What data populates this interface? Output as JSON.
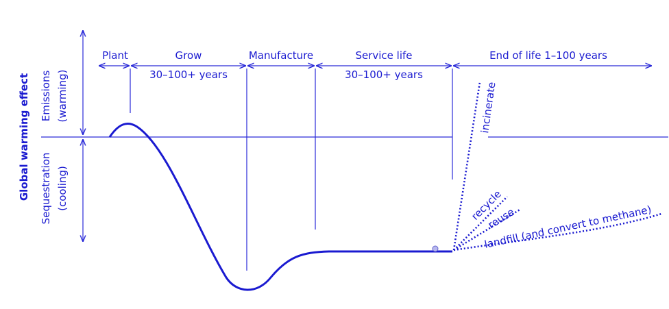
{
  "axis_label": "Global warming effect",
  "y_sections": [
    {
      "label": "Emissions",
      "sublabel": "(warming)"
    },
    {
      "label": "Sequestration",
      "sublabel": "(cooling)"
    }
  ],
  "phases": [
    {
      "label": "Plant"
    },
    {
      "label": "Grow",
      "duration": "30–100+ years"
    },
    {
      "label": "Manufacture"
    },
    {
      "label": "Service life",
      "duration": "30–100+ years"
    },
    {
      "label": "End of life 1–100 years"
    }
  ],
  "end_options": [
    "incinerate",
    "recycle",
    "reuse",
    "landfill (and convert to methane)"
  ]
}
